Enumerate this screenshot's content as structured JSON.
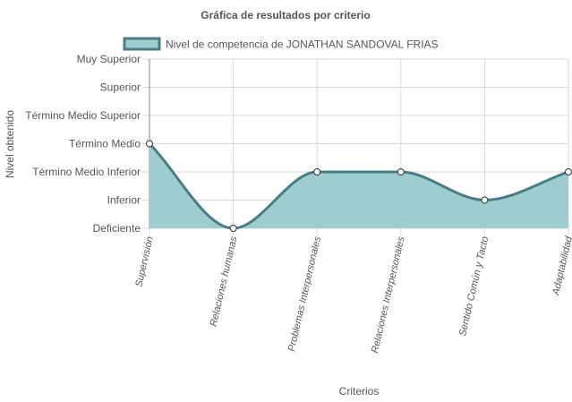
{
  "chart_data": {
    "type": "area",
    "title": "Gráfica de resultados por criterio",
    "xlabel": "Criterios",
    "ylabel": "Nivel obtenido",
    "categories": [
      "Supervisión",
      "Relaciones humanas",
      "Problemas Interpersonales",
      "Relaciones Interpersonales",
      "Sentido Común y Tacto",
      "Adaptabilidad"
    ],
    "y_levels": [
      "Deficiente",
      "Inferior",
      "Término Medio Inferior",
      "Término Medio",
      "Término Medio Superior",
      "Superior",
      "Muy Superior"
    ],
    "series": [
      {
        "name": "Nivel de competencia de JONATHAN SANDOVAL FRIAS",
        "values": [
          3,
          0,
          2,
          2,
          1,
          2
        ],
        "fill_color": "#9ecdd0",
        "line_color": "#4a7c83"
      }
    ],
    "ylim": [
      0,
      6
    ],
    "grid": true,
    "legend_position": "top"
  }
}
